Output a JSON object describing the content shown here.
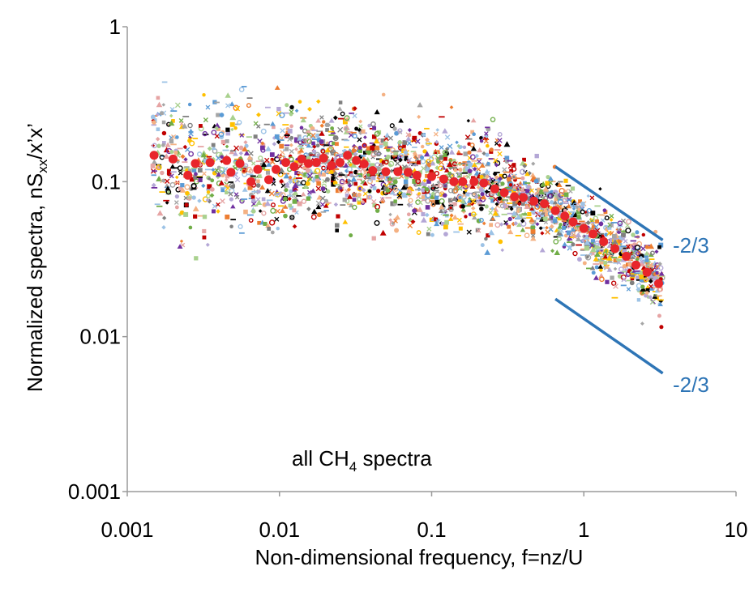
{
  "chart_data": {
    "type": "scatter",
    "title": "",
    "xlabel": "Non-dimensional frequency, f=nz/U",
    "ylabel_parts": [
      "Normalized spectra, nS",
      "xx",
      "/x’x’"
    ],
    "x_scale": "log",
    "y_scale": "log",
    "xlim": [
      0.001,
      10
    ],
    "ylim": [
      0.001,
      1
    ],
    "x_ticks": [
      "0.001",
      "0.01",
      "0.1",
      "1",
      "10"
    ],
    "y_ticks": [
      "0.001",
      "0.01",
      "0.1",
      "1"
    ],
    "grid": false,
    "annotation_parts": [
      "all CH",
      "4",
      " spectra"
    ],
    "slope_labels": [
      "-2/3",
      "-2/3"
    ],
    "slope_color": "#2e75b6",
    "median_color": "#e8262b",
    "series": [
      {
        "type": "line-segments",
        "color": "#2e75b6",
        "segments": [
          [
            [
              0.65,
              0.125
            ],
            [
              3.3,
              0.042
            ]
          ],
          [
            [
              0.65,
              0.0175
            ],
            [
              3.3,
              0.0058
            ]
          ]
        ]
      },
      {
        "type": "markers",
        "color": "#e8262b",
        "x": [
          0.0015,
          0.002,
          0.0025,
          0.0028,
          0.0035,
          0.0045,
          0.0048,
          0.0055,
          0.0065,
          0.0072,
          0.0085,
          0.0095,
          0.011,
          0.0125,
          0.014,
          0.0155,
          0.0175,
          0.0195,
          0.022,
          0.025,
          0.028,
          0.032,
          0.036,
          0.041,
          0.05,
          0.06,
          0.07,
          0.08,
          0.1,
          0.12,
          0.14,
          0.16,
          0.19,
          0.22,
          0.26,
          0.3,
          0.35,
          0.4,
          0.47,
          0.55,
          0.65,
          0.75,
          0.85,
          1.0,
          1.15,
          1.35,
          1.6,
          1.9,
          2.2,
          2.6,
          3.1
        ],
        "y": [
          0.148,
          0.14,
          0.11,
          0.131,
          0.133,
          0.137,
          0.115,
          0.131,
          0.1,
          0.12,
          0.103,
          0.12,
          0.133,
          0.125,
          0.14,
          0.131,
          0.133,
          0.142,
          0.127,
          0.133,
          0.148,
          0.137,
          0.13,
          0.118,
          0.116,
          0.116,
          0.115,
          0.11,
          0.108,
          0.104,
          0.1,
          0.1,
          0.1,
          0.098,
          0.09,
          0.085,
          0.08,
          0.079,
          0.075,
          0.072,
          0.065,
          0.06,
          0.055,
          0.05,
          0.046,
          0.041,
          0.037,
          0.033,
          0.029,
          0.026,
          0.022
        ]
      }
    ],
    "scatter_palette": [
      "#000000",
      "#5b9bd5",
      "#ed7d31",
      "#a5a5a5",
      "#ffc000",
      "#70ad47",
      "#c00000",
      "#7030a0",
      "#f4b183",
      "#9dc3e6",
      "#a9d18e",
      "#b4a7d6",
      "#e6a4a4",
      "#808080"
    ]
  }
}
